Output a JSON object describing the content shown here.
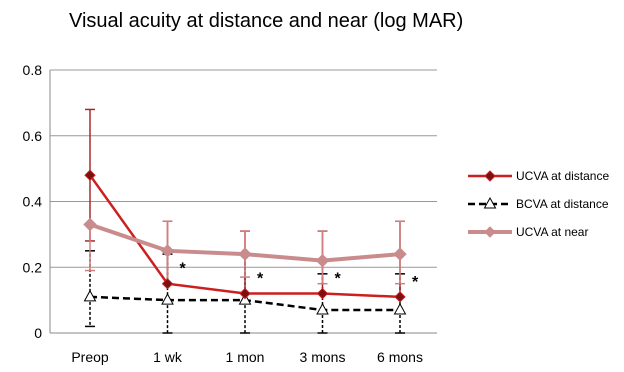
{
  "chart_data": {
    "type": "line",
    "title": "Visual acuity at distance and near (log MAR)",
    "xlabel": "",
    "ylabel": "",
    "categories": [
      "Preop",
      "1 wk",
      "1 mon",
      "3 mons",
      "6 mons"
    ],
    "ylim": [
      0,
      0.8
    ],
    "yticks": [
      0,
      0.2,
      0.4,
      0.6,
      0.8
    ],
    "ytick_labels": [
      "0",
      "0.2",
      "0.4",
      "0.6",
      "0.8"
    ],
    "grid": "horizontal",
    "legend_position": "right",
    "series": [
      {
        "name": "UCVA at distance",
        "values": [
          0.48,
          0.15,
          0.12,
          0.12,
          0.11
        ],
        "error_high": [
          0.68,
          0.34,
          0.31,
          0.31,
          0.34
        ],
        "error_low": [
          0.28,
          null,
          null,
          null,
          null
        ],
        "color": "#cc1f1f",
        "style": "solid",
        "marker": "diamond"
      },
      {
        "name": "BCVA at distance",
        "values": [
          0.11,
          0.1,
          0.1,
          0.07,
          0.07
        ],
        "error_high": [
          0.25,
          0.24,
          0.24,
          0.18,
          0.18
        ],
        "error_low": [
          0.02,
          0.0,
          0.0,
          0.0,
          0.0
        ],
        "color": "#000000",
        "style": "dashed",
        "marker": "triangle-open"
      },
      {
        "name": "UCVA at near",
        "values": [
          0.33,
          0.25,
          0.24,
          0.22,
          0.24
        ],
        "error_high": [
          null,
          0.34,
          0.31,
          0.31,
          0.34
        ],
        "error_low": [
          0.19,
          0.15,
          0.17,
          0.15,
          0.15
        ],
        "color": "#c98b8b",
        "style": "solid",
        "marker": "diamond"
      }
    ],
    "annotations": [
      {
        "text": "*",
        "category": "1 wk",
        "value": 0.15
      },
      {
        "text": "*",
        "category": "1 mon",
        "value": 0.12
      },
      {
        "text": "*",
        "category": "3 mons",
        "value": 0.12
      },
      {
        "text": "*",
        "category": "6 mons",
        "value": 0.11
      }
    ]
  }
}
